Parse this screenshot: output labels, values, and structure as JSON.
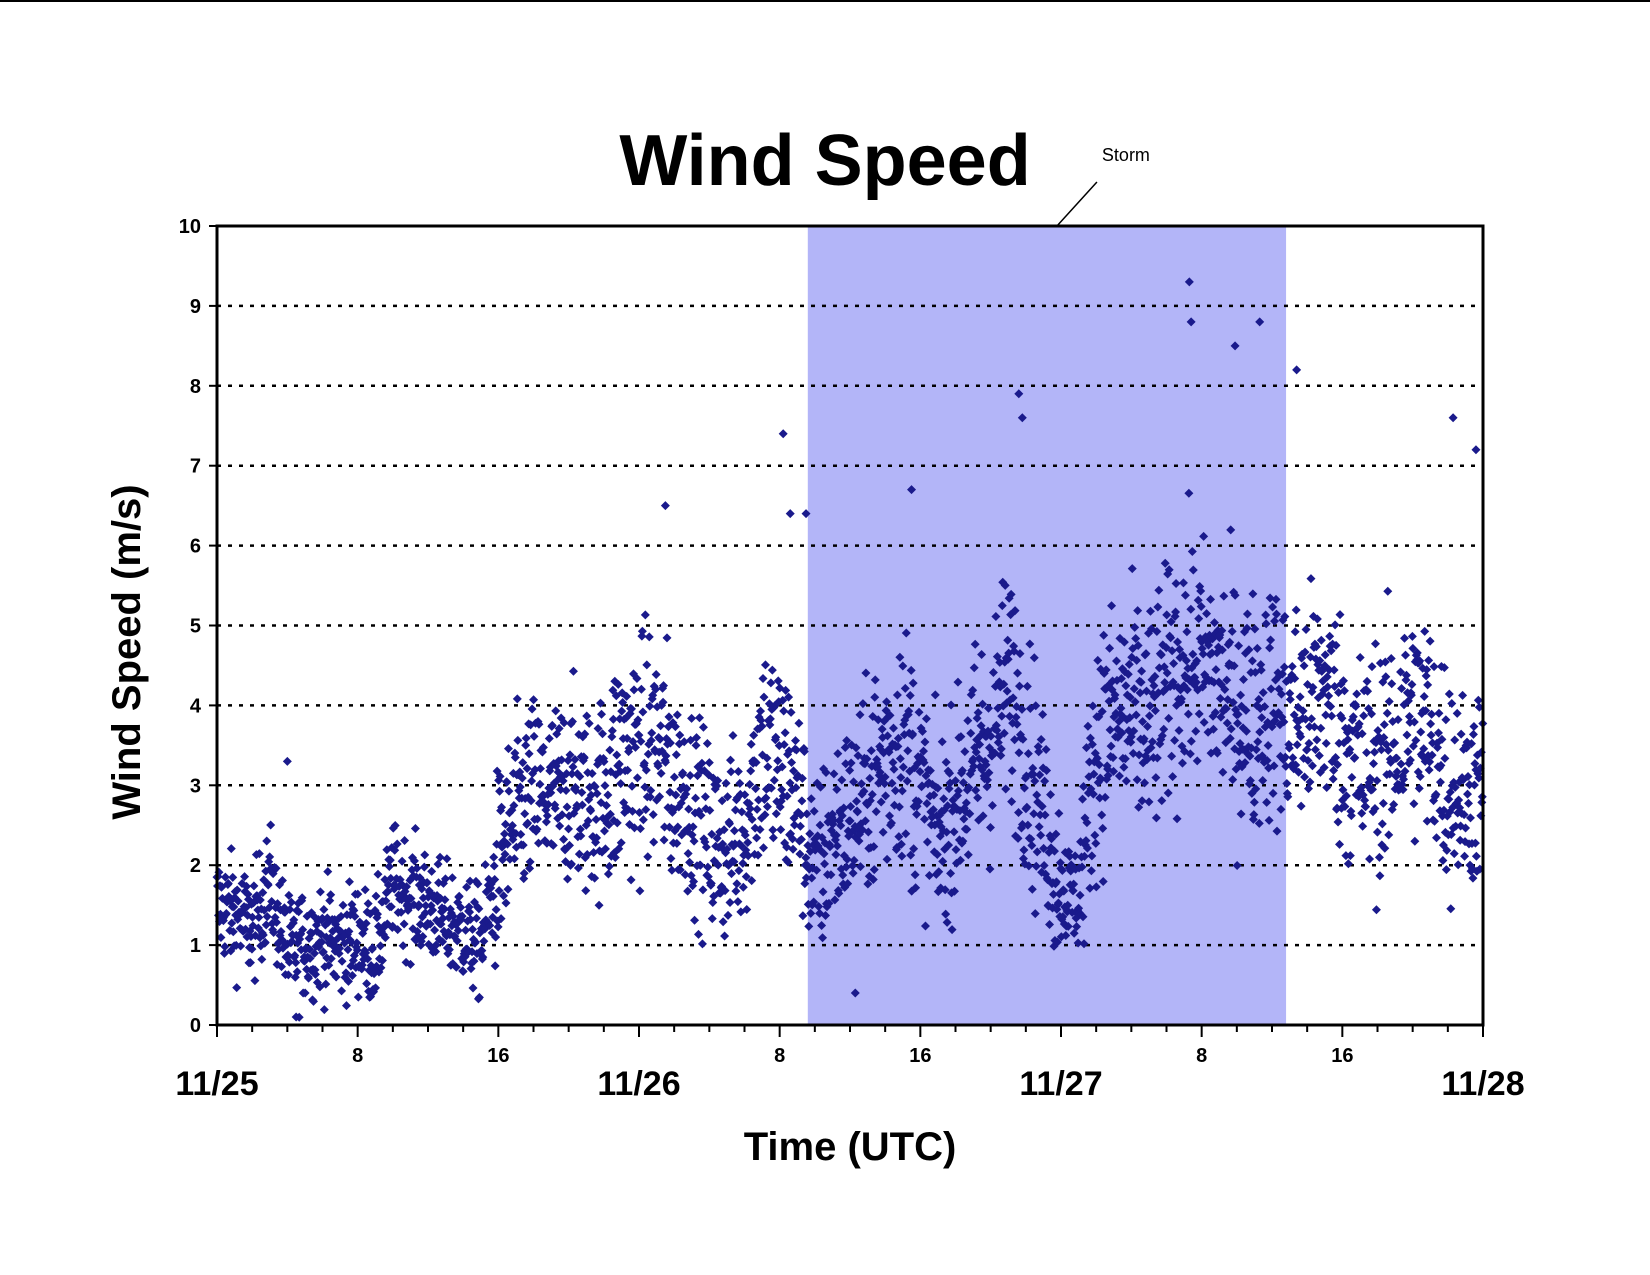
{
  "chart_data": {
    "type": "scatter",
    "title": "Wind Speed",
    "xlabel": "Time (UTC)",
    "ylabel": "Wind Speed (m/s)",
    "ylim": [
      0,
      10
    ],
    "xlim_hours": [
      0,
      72
    ],
    "yticks": [
      "0",
      "1",
      "2",
      "3",
      "4",
      "5",
      "6",
      "7",
      "8",
      "9",
      "10"
    ],
    "x_hour_ticks": [
      {
        "hour": 8,
        "label": "8"
      },
      {
        "hour": 16,
        "label": "16"
      },
      {
        "hour": 32,
        "label": "8"
      },
      {
        "hour": 40,
        "label": "16"
      },
      {
        "hour": 56,
        "label": "8"
      },
      {
        "hour": 64,
        "label": "16"
      }
    ],
    "x_day_ticks": [
      {
        "hour": 0,
        "label": "11/25"
      },
      {
        "hour": 24,
        "label": "11/26"
      },
      {
        "hour": 48,
        "label": "11/27"
      },
      {
        "hour": 72,
        "label": "11/28"
      }
    ],
    "grid": "horizontal dotted",
    "marker": "diamond",
    "marker_color": "#1a1a8c",
    "highlight_color": "#b3b5f8",
    "annotation": {
      "label": "Storm",
      "start_hour": 33.6,
      "end_hour": 60.8
    },
    "trend": [
      [
        0,
        1.5
      ],
      [
        1,
        1.4
      ],
      [
        2,
        1.2
      ],
      [
        3,
        1.8
      ],
      [
        4,
        0.9
      ],
      [
        5,
        1.0
      ],
      [
        6,
        1.1
      ],
      [
        7,
        1.0
      ],
      [
        8,
        1.1
      ],
      [
        9,
        0.9
      ],
      [
        10,
        1.8
      ],
      [
        11,
        1.6
      ],
      [
        12,
        1.5
      ],
      [
        13,
        1.3
      ],
      [
        14,
        1.2
      ],
      [
        15,
        1.0
      ],
      [
        16,
        2.0
      ],
      [
        17,
        2.6
      ],
      [
        18,
        2.9
      ],
      [
        19,
        2.8
      ],
      [
        20,
        3.0
      ],
      [
        21,
        2.8
      ],
      [
        22,
        2.9
      ],
      [
        23,
        3.3
      ],
      [
        24,
        3.4
      ],
      [
        25,
        3.5
      ],
      [
        26,
        3.0
      ],
      [
        27,
        2.8
      ],
      [
        28,
        2.3
      ],
      [
        29,
        2.2
      ],
      [
        30,
        2.5
      ],
      [
        31,
        3.5
      ],
      [
        32,
        3.2
      ],
      [
        33,
        2.9
      ],
      [
        34,
        1.8
      ],
      [
        35,
        2.4
      ],
      [
        36,
        2.6
      ],
      [
        37,
        2.9
      ],
      [
        38,
        3.3
      ],
      [
        39,
        3.6
      ],
      [
        40,
        3.0
      ],
      [
        41,
        2.3
      ],
      [
        42,
        2.8
      ],
      [
        43,
        3.2
      ],
      [
        44,
        3.6
      ],
      [
        45,
        4.3
      ],
      [
        46,
        3.5
      ],
      [
        47,
        2.6
      ],
      [
        48,
        1.7
      ],
      [
        49,
        1.6
      ],
      [
        50,
        3.5
      ],
      [
        51,
        3.8
      ],
      [
        52,
        3.9
      ],
      [
        53,
        3.7
      ],
      [
        54,
        4.2
      ],
      [
        55,
        4.6
      ],
      [
        56,
        4.5
      ],
      [
        57,
        4.3
      ],
      [
        58,
        4.0
      ],
      [
        59,
        3.9
      ],
      [
        60,
        4.1
      ],
      [
        61,
        3.8
      ],
      [
        62,
        3.9
      ],
      [
        63,
        4.2
      ],
      [
        64,
        3.6
      ],
      [
        65,
        3.2
      ],
      [
        66,
        3.3
      ],
      [
        67,
        3.5
      ],
      [
        68,
        3.9
      ],
      [
        69,
        3.6
      ],
      [
        70,
        3.1
      ],
      [
        71,
        2.9
      ],
      [
        72,
        3.0
      ]
    ],
    "notable_points": [
      [
        4,
        3.3
      ],
      [
        4.5,
        0.1
      ],
      [
        25.5,
        6.5
      ],
      [
        32.2,
        7.4
      ],
      [
        32.6,
        6.4
      ],
      [
        33.5,
        6.4
      ],
      [
        39.5,
        6.7
      ],
      [
        45.6,
        7.9
      ],
      [
        45.8,
        7.6
      ],
      [
        55.3,
        9.3
      ],
      [
        55.4,
        8.8
      ],
      [
        57.9,
        8.5
      ],
      [
        59.3,
        8.8
      ],
      [
        61.4,
        8.2
      ],
      [
        71.6,
        7.2
      ],
      [
        70.3,
        7.6
      ],
      [
        36.3,
        0.4
      ]
    ]
  }
}
